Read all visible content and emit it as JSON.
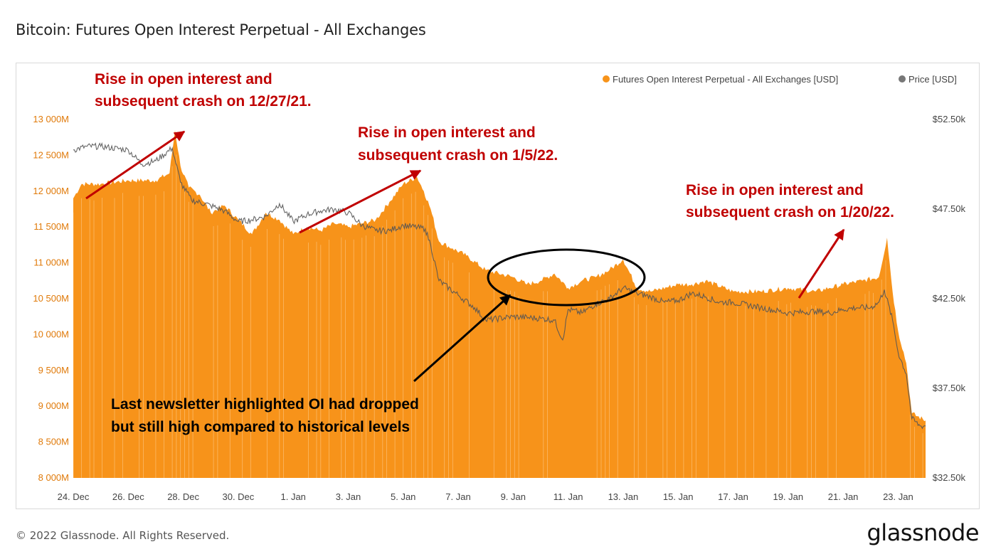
{
  "header": {
    "title": "Bitcoin: Futures Open Interest Perpetual - All Exchanges"
  },
  "footer": {
    "copyright": "© 2022 Glassnode. All Rights Reserved.",
    "brand": "glassnode"
  },
  "colors": {
    "oi": "#f7931a",
    "price": "#555555",
    "annotation_red": "#c00000",
    "annotation_black": "#000000",
    "left_axis": "#e07a0a"
  },
  "chart_data": {
    "type": "area",
    "title": "Bitcoin: Futures Open Interest Perpetual - All Exchanges",
    "legend": {
      "placement": "top-right",
      "items": [
        "Futures Open Interest Perpetual - All Exchanges [USD]",
        "Price [USD]"
      ]
    },
    "x_ticks": [
      "24. Dec",
      "26. Dec",
      "28. Dec",
      "30. Dec",
      "1. Jan",
      "3. Jan",
      "5. Jan",
      "7. Jan",
      "9. Jan",
      "11. Jan",
      "13. Jan",
      "15. Jan",
      "17. Jan",
      "19. Jan",
      "21. Jan",
      "23. Jan"
    ],
    "y_left": {
      "ticks": [
        "13 000M",
        "12 500M",
        "12 000M",
        "11 500M",
        "11 000M",
        "10 500M",
        "10 000M",
        "9 500M",
        "9 000M",
        "8 500M",
        "8 000M"
      ],
      "range": [
        8000,
        13000
      ],
      "unit": "M USD"
    },
    "y_right": {
      "ticks": [
        "$52.50k",
        "$47.50k",
        "$42.50k",
        "$37.50k",
        "$32.50k"
      ],
      "range": [
        32500,
        52500
      ],
      "unit": "USD"
    },
    "x_range_days": [
      0,
      31
    ],
    "grid": false,
    "series": [
      {
        "name": "Futures Open Interest Perpetual - All Exchanges [USD]",
        "axis": "left",
        "points": [
          [
            0,
            11900
          ],
          [
            0.3,
            12100
          ],
          [
            1,
            12100
          ],
          [
            2,
            12150
          ],
          [
            3,
            12150
          ],
          [
            3.5,
            12250
          ],
          [
            3.7,
            12850
          ],
          [
            3.9,
            12350
          ],
          [
            4.2,
            12050
          ],
          [
            4.6,
            11950
          ],
          [
            5,
            11700
          ],
          [
            5.5,
            11800
          ],
          [
            6,
            11600
          ],
          [
            6.5,
            11400
          ],
          [
            7,
            11700
          ],
          [
            7.5,
            11600
          ],
          [
            8,
            11400
          ],
          [
            8.5,
            11500
          ],
          [
            9,
            11450
          ],
          [
            9.5,
            11550
          ],
          [
            10,
            11500
          ],
          [
            10.5,
            11550
          ],
          [
            11,
            11600
          ],
          [
            11.5,
            11850
          ],
          [
            12,
            12100
          ],
          [
            12.5,
            12200
          ],
          [
            12.75,
            12000
          ],
          [
            13,
            11750
          ],
          [
            13.3,
            11300
          ],
          [
            13.8,
            11200
          ],
          [
            14.3,
            11100
          ],
          [
            15,
            10900
          ],
          [
            16,
            10800
          ],
          [
            16.5,
            10700
          ],
          [
            17,
            10750
          ],
          [
            17.5,
            10850
          ],
          [
            18,
            10650
          ],
          [
            18.5,
            10750
          ],
          [
            19,
            10800
          ],
          [
            19.5,
            10900
          ],
          [
            20,
            11050
          ],
          [
            20.5,
            10650
          ],
          [
            21,
            10600
          ],
          [
            22,
            10700
          ],
          [
            22.5,
            10700
          ],
          [
            23,
            10750
          ],
          [
            24,
            10600
          ],
          [
            25,
            10600
          ],
          [
            26,
            10650
          ],
          [
            27,
            10600
          ],
          [
            27.5,
            10650
          ],
          [
            28,
            10700
          ],
          [
            28.7,
            10750
          ],
          [
            29.3,
            10800
          ],
          [
            29.6,
            11350
          ],
          [
            29.8,
            10600
          ],
          [
            30,
            10050
          ],
          [
            30.3,
            9600
          ],
          [
            30.5,
            8900
          ],
          [
            31,
            8800
          ]
        ]
      },
      {
        "name": "Price [USD]",
        "axis": "right",
        "points": [
          [
            0,
            50800
          ],
          [
            0.5,
            51000
          ],
          [
            1,
            51000
          ],
          [
            2,
            50800
          ],
          [
            2.5,
            50000
          ],
          [
            3,
            50200
          ],
          [
            3.6,
            50900
          ],
          [
            3.9,
            49000
          ],
          [
            4.3,
            48000
          ],
          [
            5,
            47700
          ],
          [
            5.5,
            47400
          ],
          [
            6,
            46800
          ],
          [
            6.5,
            46900
          ],
          [
            7,
            47100
          ],
          [
            7.5,
            47800
          ],
          [
            8,
            46800
          ],
          [
            8.5,
            47200
          ],
          [
            9,
            47400
          ],
          [
            9.5,
            47500
          ],
          [
            10,
            47300
          ],
          [
            10.5,
            46600
          ],
          [
            11,
            46300
          ],
          [
            11.5,
            46300
          ],
          [
            12,
            46600
          ],
          [
            12.8,
            46400
          ],
          [
            13,
            45500
          ],
          [
            13.3,
            43500
          ],
          [
            14,
            42700
          ],
          [
            14.6,
            42000
          ],
          [
            15,
            41300
          ],
          [
            16,
            41500
          ],
          [
            17,
            41400
          ],
          [
            17.5,
            41300
          ],
          [
            17.8,
            40200
          ],
          [
            18,
            41900
          ],
          [
            18.5,
            41700
          ],
          [
            19,
            42200
          ],
          [
            19.5,
            42500
          ],
          [
            20,
            43100
          ],
          [
            20.5,
            42800
          ],
          [
            21,
            42600
          ],
          [
            21.5,
            42300
          ],
          [
            22,
            42400
          ],
          [
            22.5,
            42800
          ],
          [
            23,
            42600
          ],
          [
            23.5,
            42300
          ],
          [
            24,
            42300
          ],
          [
            25,
            42000
          ],
          [
            26,
            41700
          ],
          [
            27,
            41800
          ],
          [
            27.5,
            41700
          ],
          [
            28,
            41900
          ],
          [
            28.5,
            42000
          ],
          [
            29,
            42000
          ],
          [
            29.3,
            42300
          ],
          [
            29.5,
            43000
          ],
          [
            29.8,
            41300
          ],
          [
            30,
            39500
          ],
          [
            30.3,
            38300
          ],
          [
            30.5,
            35800
          ],
          [
            30.8,
            35400
          ],
          [
            31,
            35400
          ]
        ]
      }
    ],
    "annotations": [
      {
        "lines": [
          "Rise in open interest and",
          "subsequent crash on 12/27/21."
        ],
        "color": "red"
      },
      {
        "lines": [
          "Rise in open interest and",
          "subsequent crash on 1/5/22."
        ],
        "color": "red"
      },
      {
        "lines": [
          "Rise in open interest and",
          "subsequent crash on 1/20/22."
        ],
        "color": "red"
      },
      {
        "lines": [
          "Last newsletter highlighted OI had dropped",
          "but still high compared to historical levels"
        ],
        "color": "black"
      }
    ]
  }
}
